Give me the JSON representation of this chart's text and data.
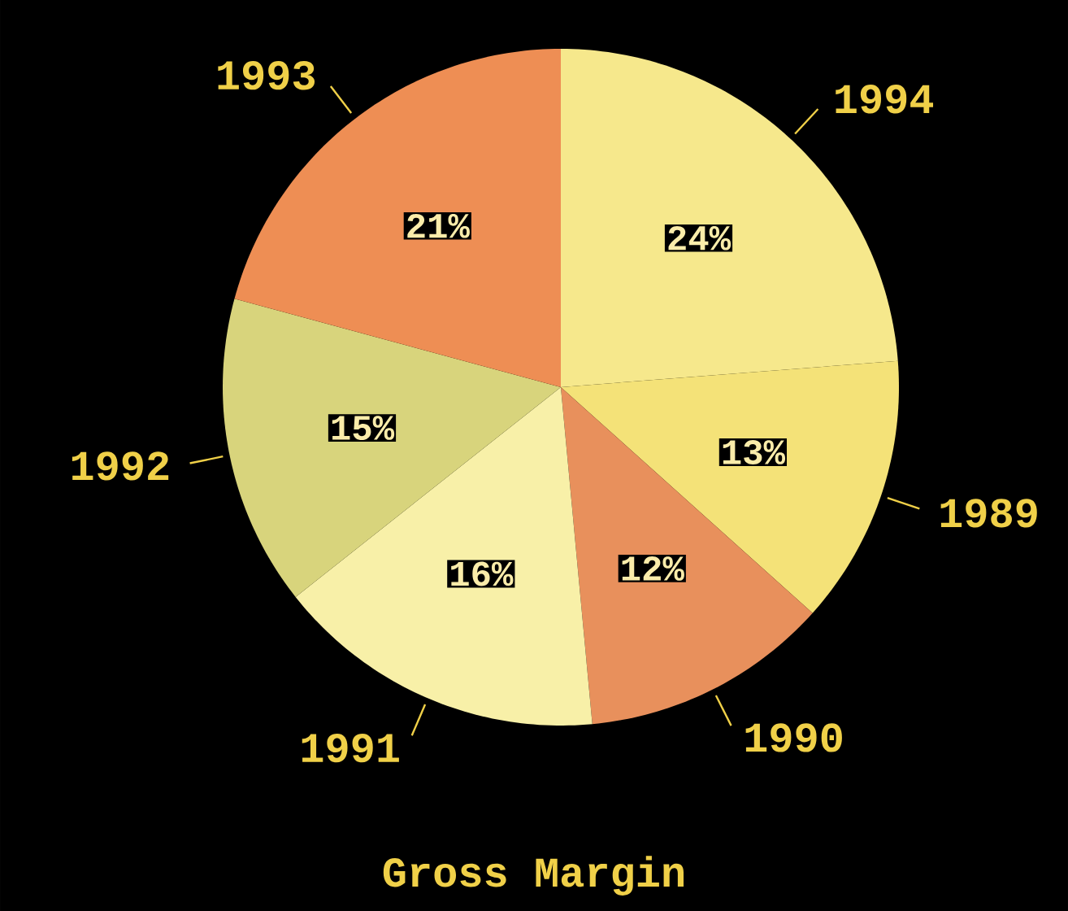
{
  "chart_data": {
    "type": "pie",
    "title": "Gross Margin",
    "categories": [
      "1994",
      "1989",
      "1990",
      "1991",
      "1992",
      "1993"
    ],
    "values": [
      24,
      13,
      12,
      16,
      15,
      21
    ],
    "value_labels": [
      "24%",
      "13%",
      "12%",
      "16%",
      "15%",
      "21%"
    ],
    "colors": [
      "#f6e88c",
      "#f4e278",
      "#e8905c",
      "#f8f0a8",
      "#d8d47c",
      "#ee8e54"
    ]
  }
}
